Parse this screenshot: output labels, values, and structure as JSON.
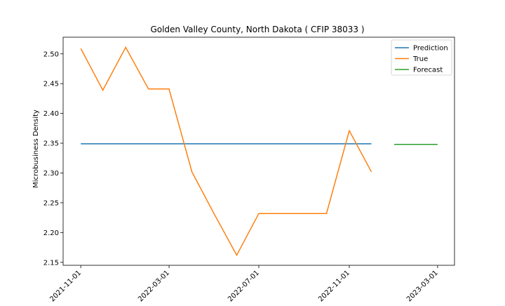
{
  "chart_data": {
    "type": "line",
    "title": "Golden Valley County, North Dakota ( CFIP 38033 )",
    "xlabel": "",
    "ylabel": "Microbusiness Density",
    "x_ticks": [
      "2021-11-01",
      "2022-03-01",
      "2022-07-01",
      "2022-11-01",
      "2023-03-01"
    ],
    "y_ticks": [
      "2.15",
      "2.20",
      "2.25",
      "2.30",
      "2.35",
      "2.40",
      "2.45",
      "2.50"
    ],
    "xlim": [
      "2021-10-08",
      "2023-03-24"
    ],
    "ylim": [
      2.145,
      2.528
    ],
    "grid": false,
    "legend_position": "top-right",
    "series": [
      {
        "name": "Prediction",
        "color": "#1f77b4",
        "x": [
          "2021-11-01",
          "2022-12-01"
        ],
        "y": [
          2.349,
          2.349
        ]
      },
      {
        "name": "True",
        "color": "#ff7f0e",
        "x": [
          "2021-11-01",
          "2021-12-01",
          "2022-01-01",
          "2022-02-01",
          "2022-03-01",
          "2022-04-01",
          "2022-05-01",
          "2022-06-01",
          "2022-07-01",
          "2022-08-01",
          "2022-09-01",
          "2022-10-01",
          "2022-11-01",
          "2022-12-01"
        ],
        "y": [
          2.509,
          2.439,
          2.511,
          2.441,
          2.441,
          2.302,
          2.232,
          2.162,
          2.232,
          2.232,
          2.232,
          2.232,
          2.371,
          2.302
        ]
      },
      {
        "name": "Forecast",
        "color": "#2ca02c",
        "x": [
          "2023-01-01",
          "2023-03-01"
        ],
        "y": [
          2.348,
          2.348
        ]
      }
    ]
  }
}
